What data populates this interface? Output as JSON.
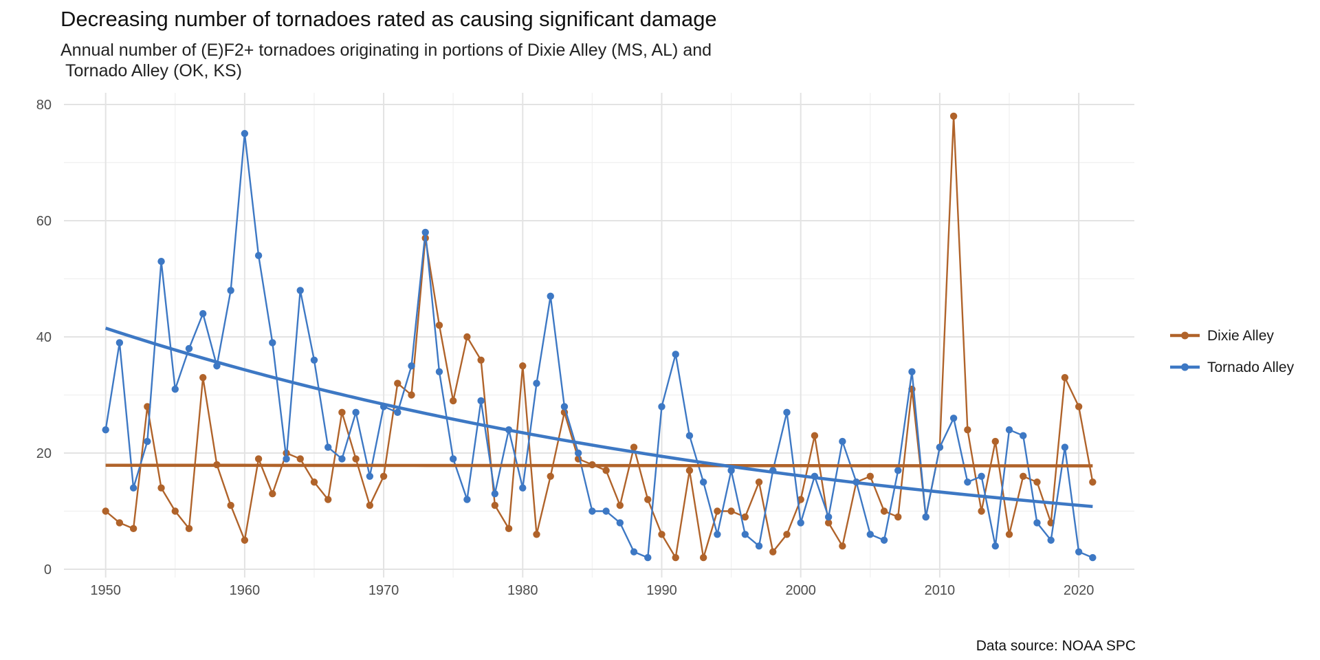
{
  "title": "Decreasing number of tornadoes rated as causing significant damage",
  "subtitle": "Annual number of (E)F2+ tornadoes originating in portions of Dixie Alley (MS, AL) and\n Tornado Alley (OK, KS)",
  "caption": "Data source: NOAA SPC",
  "chart_data": {
    "type": "line",
    "title": "Decreasing number of tornadoes rated as causing significant damage",
    "xlabel": "",
    "ylabel": "",
    "xlim": [
      1947,
      2024
    ],
    "ylim": [
      0,
      80
    ],
    "x_ticks": [
      1950,
      1960,
      1970,
      1980,
      1990,
      2000,
      2010,
      2020
    ],
    "y_ticks": [
      0,
      20,
      40,
      60,
      80
    ],
    "grid": true,
    "legend_position": "right",
    "x": [
      1950,
      1951,
      1952,
      1953,
      1954,
      1955,
      1956,
      1957,
      1958,
      1959,
      1960,
      1961,
      1962,
      1963,
      1964,
      1965,
      1966,
      1967,
      1968,
      1969,
      1970,
      1971,
      1972,
      1973,
      1974,
      1975,
      1976,
      1977,
      1978,
      1979,
      1980,
      1981,
      1982,
      1983,
      1984,
      1985,
      1986,
      1987,
      1988,
      1989,
      1990,
      1991,
      1992,
      1993,
      1994,
      1995,
      1996,
      1997,
      1998,
      1999,
      2000,
      2001,
      2002,
      2003,
      2004,
      2005,
      2006,
      2007,
      2008,
      2009,
      2010,
      2011,
      2012,
      2013,
      2014,
      2015,
      2016,
      2017,
      2018,
      2019,
      2020,
      2021
    ],
    "series": [
      {
        "name": "Dixie Alley",
        "color": "#b0632a",
        "values": [
          10,
          8,
          7,
          28,
          14,
          10,
          7,
          33,
          18,
          11,
          5,
          19,
          13,
          20,
          19,
          15,
          12,
          27,
          19,
          11,
          16,
          32,
          30,
          57,
          42,
          29,
          40,
          36,
          11,
          7,
          35,
          6,
          16,
          27,
          19,
          18,
          17,
          11,
          21,
          12,
          6,
          2,
          17,
          2,
          10,
          10,
          9,
          15,
          3,
          6,
          12,
          23,
          8,
          4,
          15,
          16,
          10,
          9,
          31,
          9,
          21,
          78,
          24,
          10,
          22,
          6,
          16,
          15,
          8,
          33,
          28,
          15
        ],
        "trend": [
          17.9,
          17.8
        ]
      },
      {
        "name": "Tornado Alley",
        "color": "#3d78c4",
        "values": [
          24,
          39,
          14,
          22,
          53,
          31,
          38,
          44,
          35,
          48,
          75,
          54,
          39,
          19,
          48,
          36,
          21,
          19,
          27,
          16,
          28,
          27,
          35,
          58,
          34,
          19,
          12,
          29,
          13,
          24,
          14,
          32,
          47,
          28,
          20,
          10,
          10,
          8,
          3,
          2,
          28,
          37,
          23,
          15,
          6,
          17,
          6,
          4,
          17,
          27,
          8,
          16,
          9,
          22,
          15,
          6,
          5,
          17,
          34,
          9,
          21,
          26,
          15,
          16,
          4,
          24,
          23,
          8,
          5,
          21,
          3,
          2
        ],
        "trend": [
          41.5,
          10.8
        ]
      }
    ]
  },
  "legend": [
    {
      "label": "Dixie Alley",
      "color": "#b0632a"
    },
    {
      "label": "Tornado Alley",
      "color": "#3d78c4"
    }
  ]
}
